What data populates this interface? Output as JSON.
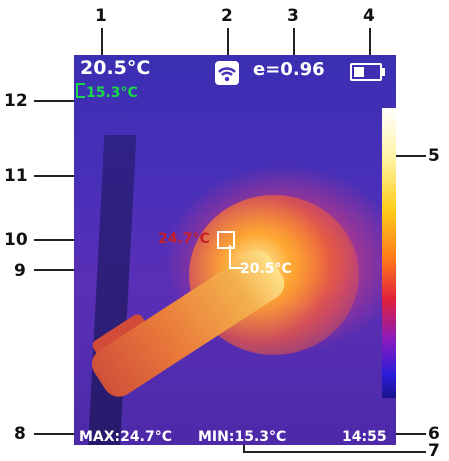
{
  "callouts": {
    "c1": "1",
    "c2": "2",
    "c3": "3",
    "c4": "4",
    "c5": "5",
    "c6": "6",
    "c7": "7",
    "c8": "8",
    "c9": "9",
    "c10": "10",
    "c11": "11",
    "c12": "12"
  },
  "screen": {
    "center_temp": "20.5°C",
    "min_temp_top": "15.3°C",
    "emissivity": "e=0.96",
    "max_spot_temp": "24.7°C",
    "center_marker_temp": "20.5°C",
    "max_label": "MAX:24.7°C",
    "min_label": "MIN:15.3°C",
    "time": "14:55",
    "wifi_icon": "wifi-icon",
    "battery_icon": "battery-icon",
    "colors": {
      "min_text": "#19d84a",
      "max_spot": "#c61e2a"
    }
  }
}
